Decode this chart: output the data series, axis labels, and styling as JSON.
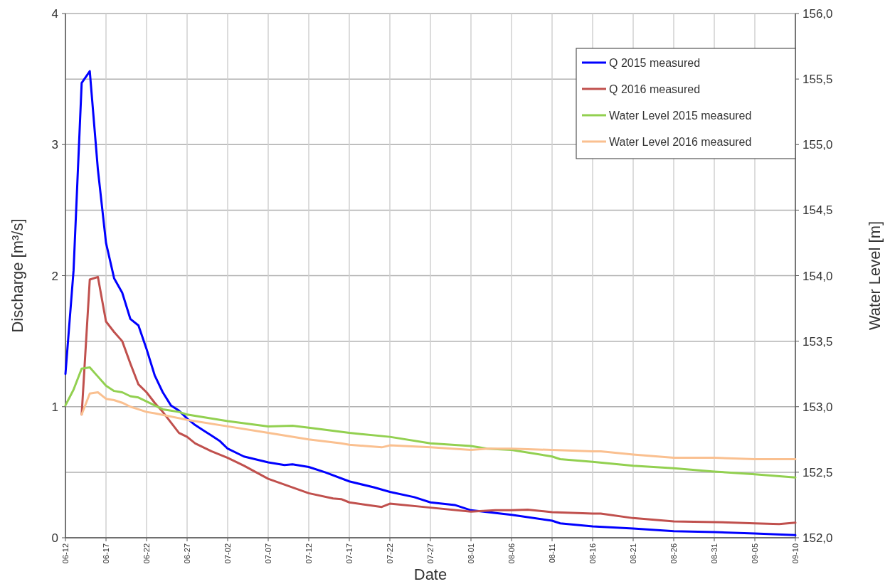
{
  "chart_data": {
    "type": "line",
    "xlabel": "Date",
    "ylabel": "Discharge [m³/s]",
    "y2label": "Water Level [m]",
    "xlim": [
      "--06-12",
      "--09-10"
    ],
    "xticks": [
      {
        "value": "--06-12",
        "label": "06-12"
      },
      {
        "value": "--06-17",
        "label": "06-17"
      },
      {
        "value": "--06-22",
        "label": "06-22"
      },
      {
        "value": "--06-27",
        "label": "06-27"
      },
      {
        "value": "--07-02",
        "label": "07-02"
      },
      {
        "value": "--07-07",
        "label": "07-07"
      },
      {
        "value": "--07-12",
        "label": "07-12"
      },
      {
        "value": "--07-17",
        "label": "07-17"
      },
      {
        "value": "--07-22",
        "label": "07-22"
      },
      {
        "value": "--07-27",
        "label": "07-27"
      },
      {
        "value": "--08-01",
        "label": "08-01"
      },
      {
        "value": "--08-06",
        "label": "08-06"
      },
      {
        "value": "--08-11",
        "label": "08-11"
      },
      {
        "value": "--08-16",
        "label": "08-16"
      },
      {
        "value": "--08-21",
        "label": "08-21"
      },
      {
        "value": "--08-26",
        "label": "08-26"
      },
      {
        "value": "--08-31",
        "label": "08-31"
      },
      {
        "value": "--09-05",
        "label": "09-05"
      },
      {
        "value": "--09-10",
        "label": "09-10"
      }
    ],
    "ylim": [
      0,
      4
    ],
    "yticks": [
      0,
      1,
      2,
      3,
      4
    ],
    "y2lim": [
      152,
      156
    ],
    "y2ticks": [
      {
        "value": 152,
        "label": "152,0"
      },
      {
        "value": 152.5,
        "label": "152,5"
      },
      {
        "value": 153,
        "label": "153,0"
      },
      {
        "value": 153.5,
        "label": "153,5"
      },
      {
        "value": 154,
        "label": "154,0"
      },
      {
        "value": 154.5,
        "label": "154,5"
      },
      {
        "value": 155,
        "label": "155,0"
      },
      {
        "value": 155.5,
        "label": "155,5"
      },
      {
        "value": 156,
        "label": "156,0"
      }
    ],
    "grid": true,
    "legend": "top right",
    "marker": "none",
    "line_style": "solid",
    "series": [
      {
        "name": "Q 2015 measured",
        "color": "#0000ff",
        "x": [
          "--06-12",
          "--06-13",
          "--06-14",
          "--06-15",
          "--06-16",
          "--06-17",
          "--06-18",
          "--06-19",
          "--06-20",
          "--06-21",
          "--06-22",
          "--06-23",
          "--06-24",
          "--06-25",
          "--06-26",
          "--06-27",
          "--06-28",
          "--06-29",
          "--06-30",
          "--07-01",
          "--07-02",
          "--07-04",
          "--07-07",
          "--07-09",
          "--07-10",
          "--07-12",
          "--07-14",
          "--07-17",
          "--07-20",
          "--07-22",
          "--07-25",
          "--07-27",
          "--07-30",
          "--08-01",
          "--08-06",
          "--08-11",
          "--08-12",
          "--08-16",
          "--08-21",
          "--08-26",
          "--08-31",
          "--09-05",
          "--09-10"
        ],
        "values": [
          1.25,
          2.04,
          3.47,
          3.56,
          2.81,
          2.25,
          1.98,
          1.87,
          1.67,
          1.62,
          1.44,
          1.24,
          1.11,
          1.01,
          0.97,
          0.91,
          0.86,
          0.82,
          0.78,
          0.74,
          0.68,
          0.62,
          0.575,
          0.555,
          0.56,
          0.54,
          0.5,
          0.43,
          0.385,
          0.35,
          0.31,
          0.27,
          0.25,
          0.21,
          0.175,
          0.13,
          0.11,
          0.087,
          0.07,
          0.05,
          0.043,
          0.033,
          0.02
        ]
      },
      {
        "name": "Q 2016 measured",
        "color": "#c0504d",
        "x": [
          "--06-14",
          "--06-15",
          "--06-16",
          "--06-17",
          "--06-18",
          "--06-19",
          "--06-20",
          "--06-21",
          "--06-22",
          "--06-23",
          "--06-24",
          "--06-25",
          "--06-26",
          "--06-27",
          "--06-28",
          "--06-30",
          "--07-02",
          "--07-04",
          "--07-07",
          "--07-12",
          "--07-15",
          "--07-16",
          "--07-17",
          "--07-21",
          "--07-22",
          "--07-27",
          "--08-01",
          "--08-04",
          "--08-06",
          "--08-08",
          "--08-11",
          "--08-16",
          "--08-17",
          "--08-21",
          "--08-26",
          "--08-31",
          "--09-05",
          "--09-08",
          "--09-10"
        ],
        "values": [
          0.94,
          1.97,
          1.99,
          1.65,
          1.57,
          1.5,
          1.33,
          1.17,
          1.11,
          1.03,
          0.96,
          0.88,
          0.8,
          0.77,
          0.72,
          0.66,
          0.61,
          0.55,
          0.45,
          0.34,
          0.3,
          0.295,
          0.27,
          0.235,
          0.26,
          0.23,
          0.2,
          0.21,
          0.21,
          0.215,
          0.195,
          0.185,
          0.185,
          0.15,
          0.125,
          0.12,
          0.11,
          0.105,
          0.115
        ]
      },
      {
        "name": "Water Level 2015 measured",
        "color": "#92d050",
        "axis": "y2",
        "x": [
          "--06-12",
          "--06-13",
          "--06-14",
          "--06-15",
          "--06-16",
          "--06-17",
          "--06-18",
          "--06-19",
          "--06-20",
          "--06-21",
          "--06-22",
          "--06-23",
          "--06-24",
          "--06-25",
          "--06-26",
          "--06-27",
          "--07-02",
          "--07-07",
          "--07-10",
          "--07-12",
          "--07-17",
          "--07-22",
          "--07-27",
          "--08-01",
          "--08-03",
          "--08-06",
          "--08-11",
          "--08-12",
          "--08-16",
          "--08-21",
          "--08-26",
          "--08-31",
          "--09-05",
          "--09-10"
        ],
        "values": [
          153.01,
          153.13,
          153.29,
          153.3,
          153.23,
          153.16,
          153.12,
          153.11,
          153.08,
          153.07,
          153.04,
          153.01,
          152.98,
          152.97,
          152.96,
          152.94,
          152.89,
          152.85,
          152.855,
          152.84,
          152.8,
          152.77,
          152.72,
          152.7,
          152.68,
          152.67,
          152.62,
          152.6,
          152.58,
          152.55,
          152.53,
          152.505,
          152.485,
          152.46
        ]
      },
      {
        "name": "Water Level 2016 measured",
        "color": "#fac090",
        "axis": "y2",
        "x": [
          "--06-14",
          "--06-15",
          "--06-16",
          "--06-17",
          "--06-18",
          "--06-19",
          "--06-20",
          "--06-21",
          "--06-22",
          "--06-23",
          "--06-27",
          "--07-02",
          "--07-07",
          "--07-12",
          "--07-16",
          "--07-17",
          "--07-21",
          "--07-22",
          "--07-27",
          "--08-01",
          "--08-03",
          "--08-06",
          "--08-11",
          "--08-16",
          "--08-17",
          "--08-21",
          "--08-26",
          "--08-31",
          "--09-05",
          "--09-10"
        ],
        "values": [
          152.94,
          153.1,
          153.11,
          153.06,
          153.05,
          153.03,
          153.0,
          152.98,
          152.96,
          152.95,
          152.9,
          152.85,
          152.8,
          152.75,
          152.72,
          152.71,
          152.69,
          152.705,
          152.69,
          152.67,
          152.68,
          152.68,
          152.67,
          152.66,
          152.66,
          152.635,
          152.61,
          152.61,
          152.6,
          152.6
        ]
      }
    ]
  }
}
